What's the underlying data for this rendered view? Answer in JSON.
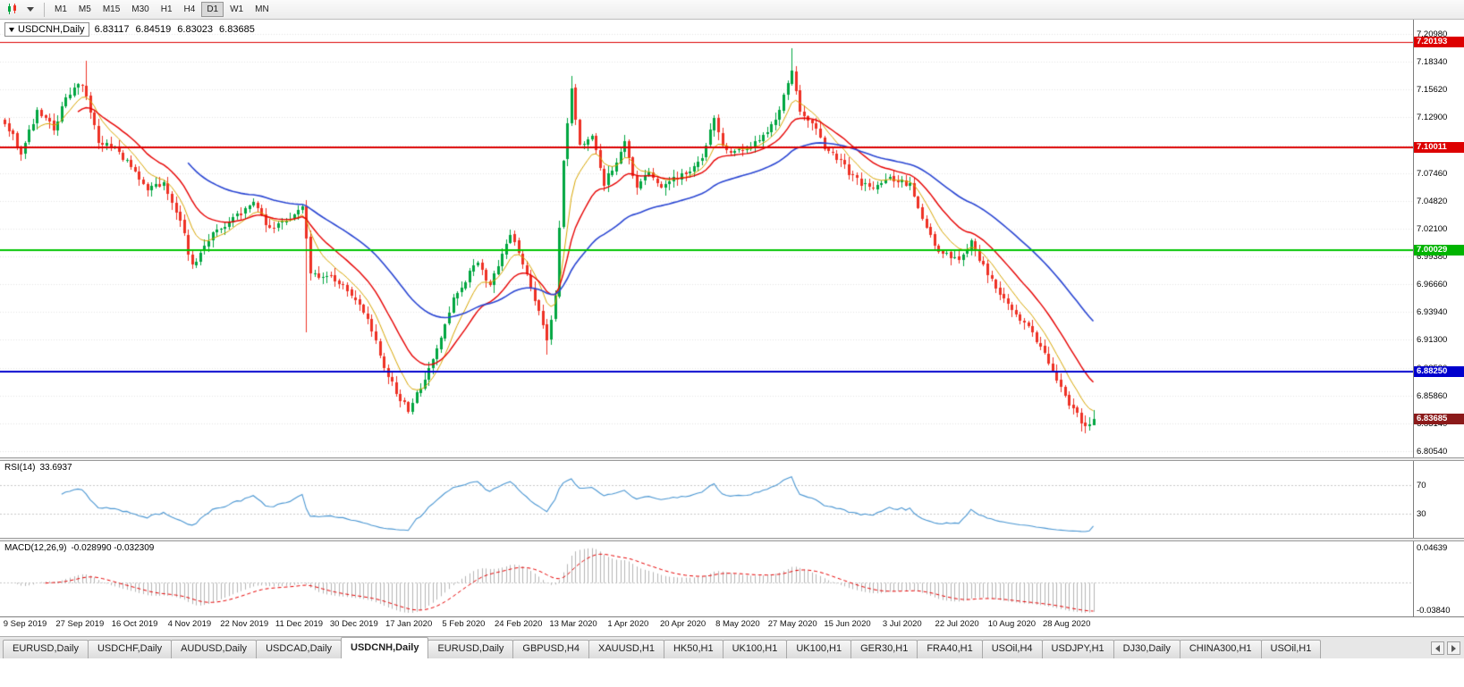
{
  "toolbar": {
    "timeframes": [
      {
        "label": "M1",
        "active": false
      },
      {
        "label": "M5",
        "active": false
      },
      {
        "label": "M15",
        "active": false
      },
      {
        "label": "M30",
        "active": false
      },
      {
        "label": "H1",
        "active": false
      },
      {
        "label": "H4",
        "active": false
      },
      {
        "label": "D1",
        "active": true
      },
      {
        "label": "W1",
        "active": false
      },
      {
        "label": "MN",
        "active": false
      }
    ]
  },
  "chart": {
    "symbol_label": "USDCNH,Daily",
    "ohlc": {
      "open": "6.83117",
      "high": "6.84519",
      "low": "6.83023",
      "close": "6.83685"
    },
    "price_axis_labels": [
      "7.20980",
      "7.18340",
      "7.15620",
      "7.12900",
      "7.10180",
      "7.07460",
      "7.04820",
      "7.02100",
      "6.99380",
      "6.96660",
      "6.93940",
      "6.91300",
      "6.88580",
      "6.85860",
      "6.83140",
      "6.80540"
    ],
    "price_badges": [
      {
        "value": "7.20193",
        "price": 7.20193,
        "color": "#dd0000"
      },
      {
        "value": "7.10011",
        "price": 7.10011,
        "color": "#dd0000"
      },
      {
        "value": "7.00029",
        "price": 7.00029,
        "color": "#00b400"
      },
      {
        "value": "6.88250",
        "price": 6.8825,
        "color": "#0000cd"
      },
      {
        "value": "6.83685",
        "price": 6.83685,
        "color": "#8b1a1a"
      }
    ]
  },
  "rsi": {
    "name": "RSI(14)",
    "value": "33.6937",
    "levels": [
      {
        "label": "70",
        "value": 70
      },
      {
        "label": "30",
        "value": 30
      }
    ]
  },
  "macd": {
    "name": "MACD(12,26,9)",
    "values": "-0.028990 -0.032309",
    "axis_max": {
      "label": "0.04639",
      "value": 0.04639
    },
    "axis_min": {
      "label": "-0.03840",
      "value": -0.0384
    }
  },
  "dates": [
    "9 Sep 2019",
    "27 Sep 2019",
    "16 Oct 2019",
    "4 Nov 2019",
    "22 Nov 2019",
    "11 Dec 2019",
    "30 Dec 2019",
    "17 Jan 2020",
    "5 Feb 2020",
    "24 Feb 2020",
    "13 Mar 2020",
    "1 Apr 2020",
    "20 Apr 2020",
    "8 May 2020",
    "27 May 2020",
    "15 Jun 2020",
    "3 Jul 2020",
    "22 Jul 2020",
    "10 Aug 2020",
    "28 Aug 2020"
  ],
  "tabs": [
    {
      "label": "EURUSD,Daily",
      "active": false
    },
    {
      "label": "USDCHF,Daily",
      "active": false
    },
    {
      "label": "AUDUSD,Daily",
      "active": false
    },
    {
      "label": "USDCAD,Daily",
      "active": false
    },
    {
      "label": "USDCNH,Daily",
      "active": true
    },
    {
      "label": "EURUSD,Daily",
      "active": false
    },
    {
      "label": "GBPUSD,H4",
      "active": false
    },
    {
      "label": "XAUUSD,H1",
      "active": false
    },
    {
      "label": "HK50,H1",
      "active": false
    },
    {
      "label": "UK100,H1",
      "active": false
    },
    {
      "label": "UK100,H1",
      "active": false
    },
    {
      "label": "GER30,H1",
      "active": false
    },
    {
      "label": "FRA40,H1",
      "active": false
    },
    {
      "label": "USOil,H4",
      "active": false
    },
    {
      "label": "USDJPY,H1",
      "active": false
    },
    {
      "label": "DJ30,Daily",
      "active": false
    },
    {
      "label": "CHINA300,H1",
      "active": false
    },
    {
      "label": "USOil,H1",
      "active": false
    }
  ],
  "chart_data": {
    "type": "candlestick",
    "symbol": "USDCNH",
    "timeframe": "Daily",
    "title": "USDCNH,Daily",
    "x_start": "9 Sep 2019",
    "x_end": "28 Aug 2020",
    "bars_total": 268,
    "price_min": 6.8054,
    "price_max": 7.2098,
    "current_ohlc": {
      "open": 6.83117,
      "high": 6.84519,
      "low": 6.83023,
      "close": 6.83685
    },
    "close_keypoints": [
      [
        0,
        7.125
      ],
      [
        4,
        7.095
      ],
      [
        8,
        7.135
      ],
      [
        12,
        7.118
      ],
      [
        15,
        7.148
      ],
      [
        19,
        7.162
      ],
      [
        23,
        7.105
      ],
      [
        27,
        7.098
      ],
      [
        31,
        7.082
      ],
      [
        35,
        7.058
      ],
      [
        39,
        7.066
      ],
      [
        43,
        7.028
      ],
      [
        46,
        6.984
      ],
      [
        50,
        7.012
      ],
      [
        55,
        7.028
      ],
      [
        58,
        7.036
      ],
      [
        61,
        7.046
      ],
      [
        65,
        7.02
      ],
      [
        70,
        7.03
      ],
      [
        73,
        7.042
      ],
      [
        75,
        6.978
      ],
      [
        80,
        6.974
      ],
      [
        85,
        6.958
      ],
      [
        89,
        6.934
      ],
      [
        93,
        6.886
      ],
      [
        97,
        6.856
      ],
      [
        99,
        6.846
      ],
      [
        102,
        6.868
      ],
      [
        106,
        6.904
      ],
      [
        110,
        6.952
      ],
      [
        113,
        6.972
      ],
      [
        116,
        6.99
      ],
      [
        119,
        6.964
      ],
      [
        124,
        7.018
      ],
      [
        127,
        6.988
      ],
      [
        131,
        6.94
      ],
      [
        133,
        6.912
      ],
      [
        135,
        6.956
      ],
      [
        137,
        7.085
      ],
      [
        139,
        7.158
      ],
      [
        141,
        7.1
      ],
      [
        144,
        7.11
      ],
      [
        147,
        7.064
      ],
      [
        150,
        7.088
      ],
      [
        152,
        7.104
      ],
      [
        155,
        7.06
      ],
      [
        158,
        7.076
      ],
      [
        161,
        7.06
      ],
      [
        164,
        7.07
      ],
      [
        168,
        7.076
      ],
      [
        171,
        7.09
      ],
      [
        174,
        7.128
      ],
      [
        176,
        7.1
      ],
      [
        179,
        7.094
      ],
      [
        183,
        7.1
      ],
      [
        187,
        7.116
      ],
      [
        190,
        7.136
      ],
      [
        193,
        7.176
      ],
      [
        195,
        7.132
      ],
      [
        198,
        7.124
      ],
      [
        201,
        7.1
      ],
      [
        204,
        7.09
      ],
      [
        207,
        7.076
      ],
      [
        210,
        7.064
      ],
      [
        213,
        7.06
      ],
      [
        216,
        7.07
      ],
      [
        219,
        7.068
      ],
      [
        222,
        7.064
      ],
      [
        225,
        7.03
      ],
      [
        228,
        7.004
      ],
      [
        231,
        6.996
      ],
      [
        234,
        6.99
      ],
      [
        237,
        7.01
      ],
      [
        240,
        6.984
      ],
      [
        243,
        6.964
      ],
      [
        246,
        6.95
      ],
      [
        249,
        6.934
      ],
      [
        252,
        6.92
      ],
      [
        255,
        6.9
      ],
      [
        258,
        6.874
      ],
      [
        260,
        6.858
      ],
      [
        263,
        6.84
      ],
      [
        265,
        6.829
      ],
      [
        267,
        6.83685
      ]
    ],
    "wick_spikes": [
      {
        "i": 20,
        "high": 7.184
      },
      {
        "i": 74,
        "low": 6.921
      },
      {
        "i": 99,
        "low": 6.842
      },
      {
        "i": 133,
        "low": 6.899
      },
      {
        "i": 139,
        "high": 7.169
      },
      {
        "i": 193,
        "high": 7.196
      },
      {
        "i": 264,
        "low": 6.8245
      }
    ],
    "horizontal_lines": [
      {
        "price": 7.20193,
        "color": "#dd0000",
        "width": 1
      },
      {
        "price": 7.10011,
        "color": "#dd0000",
        "width": 2
      },
      {
        "price": 7.00029,
        "color": "#00c400",
        "width": 2
      },
      {
        "price": 6.8825,
        "color": "#0000cd",
        "width": 2
      }
    ],
    "moving_averages": [
      {
        "period": 8,
        "type": "ema",
        "color": "#d7a500",
        "width": 1
      },
      {
        "period": 18,
        "type": "ema",
        "color": "#e60000",
        "width": 1.4
      },
      {
        "period": 45,
        "type": "ema",
        "color": "#2945d2",
        "width": 1.6
      }
    ],
    "candle_up_color": "#00a640",
    "candle_down_color": "#ee3124",
    "grid_color": "#e4e4e4",
    "rsi": {
      "period": 14,
      "current": 33.6937,
      "line_color": "#4a96d2",
      "levels": [
        30,
        70
      ]
    },
    "macd": {
      "fast": 12,
      "slow": 26,
      "signal": 9,
      "main_current": -0.02899,
      "signal_current": -0.032309,
      "hist_color": "#b4b4b4",
      "signal_color": "#e60000",
      "axis_max": 0.04639,
      "axis_min": -0.0384
    }
  }
}
